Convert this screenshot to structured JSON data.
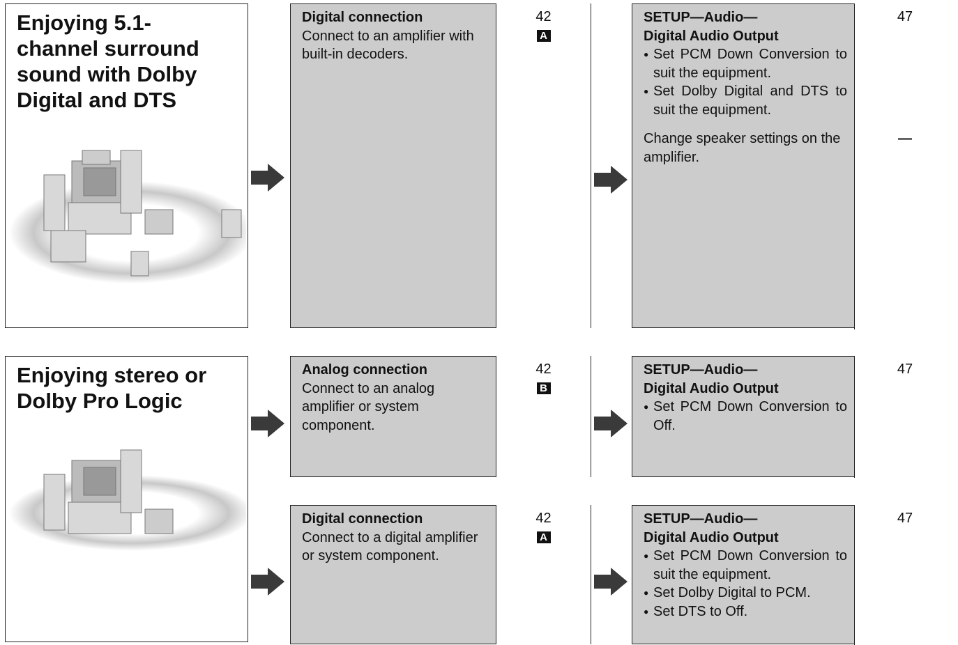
{
  "sections": [
    {
      "title_lines": [
        "Enjoying 5.1-",
        "channel surround",
        "sound with Dolby",
        "Digital and DTS"
      ],
      "rows": [
        {
          "connection": {
            "heading": "Digital connection",
            "text": "Connect to an amplifier with built-in decoders.",
            "page": "42",
            "badge": "A"
          },
          "settings": [
            {
              "heading_lines": [
                "SETUP—Audio—",
                "Digital Audio Output"
              ],
              "bullets": [
                "Set PCM Down Conversion to suit the equipment.",
                "Set Dolby Digital and DTS to suit the equipment."
              ],
              "page": "47"
            },
            {
              "text": "Change speaker settings on the amplifier.",
              "page": "—"
            }
          ]
        }
      ]
    },
    {
      "title_lines": [
        "Enjoying stereo or",
        "Dolby Pro Logic"
      ],
      "rows": [
        {
          "connection": {
            "heading": "Analog connection",
            "text": "Connect to an analog amplifier or system component.",
            "page": "42",
            "badge": "B"
          },
          "settings": [
            {
              "heading_lines": [
                "SETUP—Audio—",
                "Digital Audio Output"
              ],
              "bullets": [
                "Set PCM Down Conversion to Off."
              ],
              "page": "47"
            }
          ]
        },
        {
          "connection": {
            "heading": "Digital connection",
            "text": "Connect to a digital amplifier or system component.",
            "page": "42",
            "badge": "A"
          },
          "settings": [
            {
              "heading_lines": [
                "SETUP—Audio—",
                "Digital Audio Output"
              ],
              "bullets": [
                "Set PCM Down Conversion to suit the equipment.",
                "Set Dolby Digital to PCM.",
                "Set DTS to Off."
              ],
              "page": "47"
            }
          ]
        }
      ]
    }
  ]
}
